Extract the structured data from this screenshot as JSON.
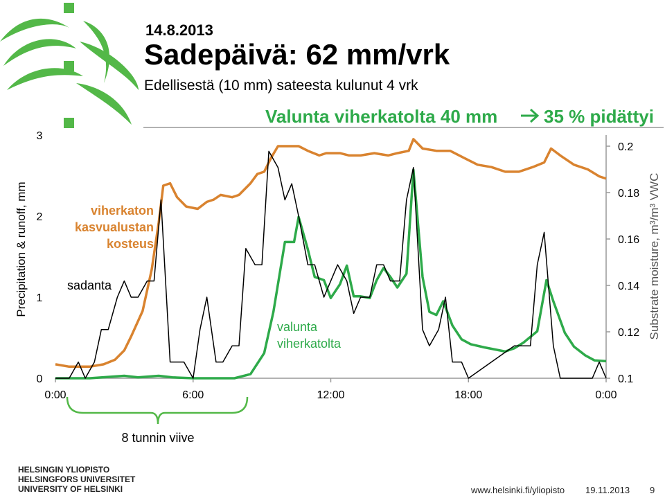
{
  "slide": {
    "date": "14.8.2013",
    "title": "Sadepäivä: 62 mm/vrk",
    "subtitle": "Edellisestä (10 mm) sateesta kulunut 4 vrk",
    "headline": [
      "Valunta viherkatolta 40 mm",
      "35 % pidättyi"
    ],
    "logo_lines": [
      "HELSINGIN YLIOPISTO",
      "HELSINGFORS UNIVERSITET",
      "UNIVERSITY OF HELSINKI"
    ],
    "footer_url": "www.helsinki.fi/yliopisto",
    "footer_date": "19.11.2013",
    "page_number": "9"
  },
  "chart_data": {
    "type": "line",
    "ylabel": "Precipitation & runoff, mm",
    "y2label": "Substrate moisture, m³/m³ VWC",
    "xlim": [
      0,
      24
    ],
    "xticks": [
      {
        "value": 0,
        "label": "0:00"
      },
      {
        "value": 6,
        "label": "6:00"
      },
      {
        "value": 12,
        "label": "12:00"
      },
      {
        "value": 18,
        "label": "18:00"
      },
      {
        "value": 24,
        "label": "0:00"
      }
    ],
    "ylim": [
      0,
      3
    ],
    "yticks": [
      0,
      1,
      2,
      3
    ],
    "y2lim": [
      0.1,
      0.2
    ],
    "y2ticks": [
      0.1,
      0.12,
      0.14,
      0.16,
      0.18,
      0.2
    ],
    "grid": false,
    "annotations": [
      {
        "lines": [
          "viherkaton",
          "kasvualustan",
          "kosteus"
        ],
        "color": "#d9832f"
      },
      {
        "lines": [
          "sadanta"
        ],
        "color": "#000000"
      },
      {
        "lines": [
          "valunta",
          "viherkatolta"
        ],
        "color": "#2eaa4a"
      },
      {
        "lines": [
          "8 tunnin viive"
        ],
        "color": "#000000"
      }
    ],
    "series": [
      {
        "color": "#000000",
        "x": [
          0,
          0.6,
          1.0,
          1.3,
          1.7,
          2.0,
          2.3,
          2.7,
          3.0,
          3.3,
          3.6,
          4.0,
          4.3,
          4.6,
          5.0,
          5.6,
          6.0,
          6.3,
          6.6,
          7.0,
          7.3,
          7.7,
          8.0,
          8.3,
          8.7,
          9.0,
          9.3,
          9.7,
          10.0,
          10.3,
          10.6,
          11.0,
          11.3,
          11.7,
          12.0,
          12.3,
          12.7,
          13.0,
          13.3,
          13.7,
          14.0,
          14.3,
          14.6,
          15.0,
          15.3,
          15.6,
          16.0,
          16.3,
          16.7,
          17.0,
          17.3,
          17.7,
          18.0,
          20.0,
          20.4,
          20.7,
          21.0,
          21.3,
          21.7,
          22.0,
          23.4,
          23.7,
          24
        ],
        "values": [
          0,
          0,
          0.2,
          0,
          0.2,
          0.6,
          0.6,
          1.0,
          1.2,
          1.0,
          1.0,
          1.2,
          1.2,
          2.2,
          0.2,
          0.2,
          0,
          0.6,
          1.0,
          0.2,
          0.2,
          0.4,
          0.4,
          1.6,
          1.4,
          1.4,
          2.8,
          2.6,
          2.2,
          2.4,
          2.0,
          1.4,
          1.4,
          1.0,
          1.2,
          1.4,
          1.2,
          0.8,
          1.0,
          1.0,
          1.4,
          1.4,
          1.2,
          1.2,
          2.2,
          2.6,
          0.6,
          0.4,
          0.6,
          1.0,
          0.2,
          0.2,
          0,
          0.4,
          0.4,
          0.4,
          1.4,
          1.8,
          0.4,
          0,
          0,
          0.2,
          0
        ]
      },
      {
        "color": "#d9832f",
        "axis": "y2",
        "x": [
          0,
          0.6,
          1.5,
          2.1,
          2.6,
          3.0,
          3.3,
          3.8,
          4.2,
          4.5,
          4.7,
          5.0,
          5.3,
          5.7,
          6.2,
          6.6,
          6.9,
          7.2,
          7.7,
          8.0,
          8.5,
          8.8,
          9.1,
          9.4,
          9.7,
          10.0,
          10.6,
          11.0,
          11.5,
          11.8,
          12.4,
          12.8,
          13.3,
          13.9,
          14.5,
          14.9,
          15.4,
          15.6,
          16.0,
          16.6,
          17.2,
          17.8,
          18.4,
          19.0,
          19.6,
          20.2,
          20.8,
          21.3,
          21.6,
          22.0,
          22.6,
          23.2,
          23.7,
          24
        ],
        "values": [
          0.106,
          0.105,
          0.105,
          0.106,
          0.108,
          0.112,
          0.118,
          0.129,
          0.147,
          0.167,
          0.183,
          0.184,
          0.178,
          0.174,
          0.173,
          0.176,
          0.177,
          0.179,
          0.178,
          0.179,
          0.184,
          0.188,
          0.189,
          0.195,
          0.2,
          0.2,
          0.2,
          0.198,
          0.196,
          0.197,
          0.197,
          0.196,
          0.196,
          0.197,
          0.196,
          0.197,
          0.198,
          0.203,
          0.199,
          0.198,
          0.198,
          0.195,
          0.192,
          0.191,
          0.189,
          0.189,
          0.191,
          0.193,
          0.199,
          0.196,
          0.192,
          0.19,
          0.187,
          0.186
        ]
      },
      {
        "color": "#2eaa4a",
        "x": [
          0,
          1.5,
          3.0,
          3.6,
          4.5,
          5.1,
          6.0,
          7.8,
          8.5,
          9.1,
          9.5,
          10.0,
          10.4,
          10.6,
          11.0,
          11.3,
          11.7,
          12.0,
          12.4,
          12.7,
          13.0,
          13.3,
          13.7,
          14.0,
          14.3,
          14.6,
          14.9,
          15.3,
          15.6,
          16.0,
          16.3,
          16.6,
          16.9,
          17.3,
          17.7,
          18.1,
          18.7,
          19.6,
          20.0,
          20.4,
          21.0,
          21.4,
          21.7,
          22.2,
          22.6,
          23.1,
          23.5,
          24
        ],
        "values": [
          0,
          0,
          0.03,
          0.01,
          0.03,
          0.01,
          0,
          0,
          0.05,
          0.31,
          0.82,
          1.68,
          1.68,
          1.99,
          1.59,
          1.25,
          1.21,
          0.99,
          1.16,
          1.39,
          1.01,
          1.01,
          0.99,
          1.21,
          1.36,
          1.25,
          1.12,
          1.29,
          2.57,
          1.25,
          0.82,
          0.78,
          0.95,
          0.65,
          0.48,
          0.42,
          0.38,
          0.33,
          0.37,
          0.44,
          0.58,
          1.21,
          0.95,
          0.56,
          0.39,
          0.28,
          0.22,
          0.21
        ]
      }
    ]
  }
}
